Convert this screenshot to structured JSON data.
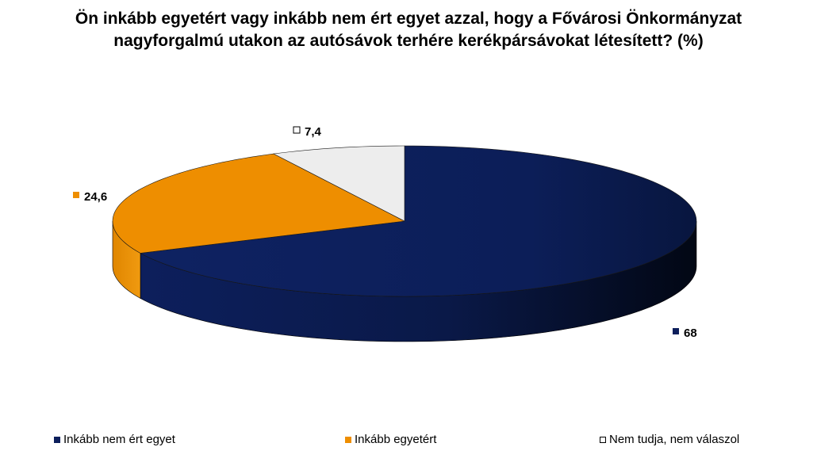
{
  "chart_data": {
    "type": "pie",
    "title": "Ön inkább egyetért vagy inkább nem ért egyet azzal, hogy a Fővárosi Önkormányzat nagyforgalmú utakon az autósávok terhére kerékpársávokat létesített? (%)",
    "title_lines": [
      "Ön inkább egyetért vagy inkább nem ért egyet azzal, hogy a Fővárosi Önkormányzat",
      "nagyforgalmú utakon az autósávok terhére kerékpársávokat létesített? (%)"
    ],
    "labels": [
      "Inkább nem ért egyet",
      "Inkább egyetért",
      "Nem tudja, nem válaszol"
    ],
    "values": [
      68,
      24.6,
      7.4
    ],
    "value_labels": [
      "68",
      "24,6",
      "7,4"
    ],
    "colors": [
      "#0d1f5c",
      "#ee8e00",
      "#ededed"
    ],
    "legend_position": "bottom",
    "style": "3d"
  }
}
